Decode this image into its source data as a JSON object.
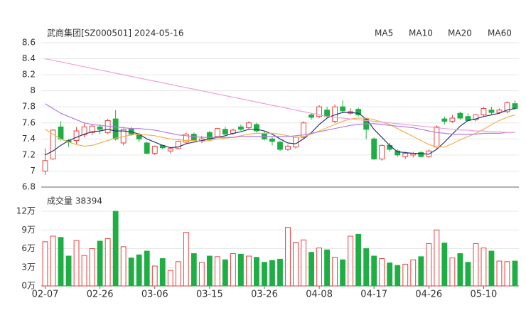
{
  "chart_data": {
    "type": "candlestick",
    "title": "武商集团[SZ000501] 2024-05-16",
    "volume_title": "成交量 38394",
    "categories": [
      "02-07",
      null,
      null,
      null,
      null,
      null,
      null,
      "02-26",
      null,
      null,
      null,
      null,
      null,
      null,
      "03-06",
      null,
      null,
      null,
      null,
      null,
      null,
      "03-15",
      null,
      null,
      null,
      null,
      null,
      null,
      "03-26",
      null,
      null,
      null,
      null,
      null,
      null,
      "04-08",
      null,
      null,
      null,
      null,
      null,
      null,
      "04-17",
      null,
      null,
      null,
      null,
      null,
      null,
      "04-26",
      null,
      null,
      null,
      null,
      null,
      null,
      "05-10",
      null,
      null,
      null,
      null
    ],
    "up_color": "#e8413c",
    "down_color": "#1fae44",
    "ohlc": {
      "open": [
        7.0,
        7.15,
        7.55,
        7.38,
        7.38,
        7.45,
        7.48,
        7.55,
        7.48,
        7.65,
        7.35,
        7.53,
        7.45,
        7.35,
        7.22,
        7.32,
        7.25,
        7.28,
        7.36,
        7.46,
        7.37,
        7.48,
        7.43,
        7.52,
        7.47,
        7.55,
        7.54,
        7.58,
        7.47,
        7.4,
        7.36,
        7.27,
        7.3,
        7.42,
        7.7,
        7.68,
        7.76,
        7.62,
        7.8,
        7.72,
        7.77,
        7.65,
        7.4,
        7.15,
        7.32,
        7.25,
        7.18,
        7.2,
        7.23,
        7.18,
        7.3,
        7.65,
        7.62,
        7.72,
        7.68,
        7.64,
        7.7,
        7.76,
        7.73,
        7.74,
        7.84
      ],
      "high": [
        7.28,
        7.52,
        7.62,
        7.4,
        7.55,
        7.6,
        7.58,
        7.58,
        7.65,
        7.76,
        7.53,
        7.55,
        7.48,
        7.37,
        7.32,
        7.33,
        7.3,
        7.38,
        7.48,
        7.48,
        7.44,
        7.5,
        7.54,
        7.55,
        7.53,
        7.58,
        7.62,
        7.6,
        7.5,
        7.42,
        7.38,
        7.33,
        7.43,
        7.62,
        7.72,
        7.82,
        7.8,
        7.83,
        7.88,
        7.78,
        7.79,
        7.66,
        7.42,
        7.33,
        7.35,
        7.27,
        7.24,
        7.24,
        7.25,
        7.27,
        7.57,
        7.68,
        7.7,
        7.74,
        7.72,
        7.71,
        7.8,
        7.8,
        7.78,
        7.87,
        7.88
      ],
      "low": [
        6.95,
        7.14,
        7.38,
        7.3,
        7.33,
        7.42,
        7.45,
        7.46,
        7.46,
        7.38,
        7.32,
        7.44,
        7.36,
        7.21,
        7.2,
        7.27,
        7.22,
        7.27,
        7.34,
        7.37,
        7.35,
        7.38,
        7.41,
        7.45,
        7.45,
        7.5,
        7.52,
        7.48,
        7.38,
        7.32,
        7.25,
        7.25,
        7.28,
        7.4,
        7.64,
        7.66,
        7.66,
        7.6,
        7.72,
        7.7,
        7.68,
        7.4,
        7.14,
        7.13,
        7.24,
        7.18,
        7.15,
        7.17,
        7.17,
        7.16,
        7.28,
        7.58,
        7.6,
        7.64,
        7.62,
        7.62,
        7.68,
        7.7,
        7.71,
        7.72,
        7.76
      ],
      "close": [
        7.13,
        7.51,
        7.4,
        7.36,
        7.5,
        7.55,
        7.56,
        7.52,
        7.63,
        7.4,
        7.52,
        7.46,
        7.4,
        7.22,
        7.31,
        7.29,
        7.28,
        7.37,
        7.46,
        7.38,
        7.4,
        7.4,
        7.53,
        7.46,
        7.51,
        7.52,
        7.6,
        7.5,
        7.4,
        7.37,
        7.27,
        7.31,
        7.42,
        7.6,
        7.67,
        7.8,
        7.68,
        7.8,
        7.75,
        7.74,
        7.7,
        7.52,
        7.15,
        7.32,
        7.27,
        7.2,
        7.22,
        7.22,
        7.18,
        7.25,
        7.55,
        7.62,
        7.66,
        7.66,
        7.63,
        7.7,
        7.78,
        7.73,
        7.76,
        7.85,
        7.78
      ]
    },
    "series": [
      {
        "name": "MA5",
        "color": "#2b3674",
        "values": [
          7.2,
          7.25,
          7.32,
          7.38,
          7.42,
          7.46,
          7.49,
          7.5,
          7.52,
          7.5,
          7.5,
          7.49,
          7.46,
          7.4,
          7.36,
          7.32,
          7.29,
          7.3,
          7.34,
          7.36,
          7.38,
          7.4,
          7.42,
          7.44,
          7.47,
          7.49,
          7.52,
          7.52,
          7.5,
          7.46,
          7.4,
          7.35,
          7.34,
          7.4,
          7.48,
          7.58,
          7.66,
          7.7,
          7.73,
          7.73,
          7.72,
          7.65,
          7.52,
          7.42,
          7.32,
          7.24,
          7.23,
          7.22,
          7.22,
          7.21,
          7.27,
          7.36,
          7.46,
          7.56,
          7.63,
          7.65,
          7.68,
          7.7,
          7.72,
          7.76,
          7.78
        ]
      },
      {
        "name": "MA10",
        "color": "#f2b04a",
        "values": [
          7.52,
          7.46,
          7.4,
          7.36,
          7.33,
          7.31,
          7.32,
          7.35,
          7.38,
          7.41,
          7.43,
          7.45,
          7.46,
          7.45,
          7.44,
          7.42,
          7.4,
          7.39,
          7.38,
          7.38,
          7.37,
          7.38,
          7.4,
          7.41,
          7.42,
          7.44,
          7.46,
          7.47,
          7.47,
          7.47,
          7.46,
          7.44,
          7.42,
          7.43,
          7.46,
          7.5,
          7.54,
          7.58,
          7.62,
          7.65,
          7.66,
          7.66,
          7.64,
          7.61,
          7.58,
          7.53,
          7.48,
          7.43,
          7.38,
          7.33,
          7.3,
          7.3,
          7.34,
          7.39,
          7.43,
          7.47,
          7.52,
          7.58,
          7.63,
          7.67,
          7.7
        ]
      },
      {
        "name": "MA20",
        "color": "#b47ce0",
        "values": [
          7.84,
          7.78,
          7.72,
          7.68,
          7.64,
          7.6,
          7.58,
          7.57,
          7.56,
          7.55,
          7.54,
          7.53,
          7.53,
          7.52,
          7.51,
          7.49,
          7.47,
          7.45,
          7.44,
          7.43,
          7.42,
          7.42,
          7.42,
          7.42,
          7.42,
          7.43,
          7.43,
          7.43,
          7.43,
          7.43,
          7.43,
          7.43,
          7.44,
          7.45,
          7.47,
          7.49,
          7.51,
          7.53,
          7.55,
          7.57,
          7.58,
          7.59,
          7.59,
          7.58,
          7.57,
          7.56,
          7.55,
          7.54,
          7.52,
          7.5,
          7.48,
          7.47,
          7.46,
          7.46,
          7.46,
          7.46,
          7.47,
          7.47,
          7.47,
          7.48,
          7.48
        ]
      },
      {
        "name": "MA60",
        "color": "#f0a0d4",
        "values": [
          8.4,
          8.38,
          8.36,
          8.34,
          8.32,
          8.3,
          8.28,
          8.26,
          8.24,
          8.22,
          8.2,
          8.18,
          8.16,
          8.14,
          8.12,
          8.1,
          8.08,
          8.06,
          8.04,
          8.02,
          8.0,
          7.98,
          7.96,
          7.94,
          7.92,
          7.9,
          7.88,
          7.86,
          7.84,
          7.82,
          7.8,
          7.78,
          7.76,
          7.74,
          7.72,
          7.7,
          7.68,
          7.67,
          7.66,
          7.65,
          7.64,
          7.63,
          7.62,
          7.61,
          7.6,
          7.59,
          7.58,
          7.57,
          7.56,
          7.55,
          7.54,
          7.53,
          7.52,
          7.51,
          7.51,
          7.5,
          7.5,
          7.49,
          7.49,
          7.48,
          7.48
        ]
      }
    ],
    "volume": [
      7.1,
      8.0,
      7.8,
      4.8,
      7.3,
      4.9,
      6.0,
      7.2,
      7.6,
      12.0,
      6.3,
      4.5,
      5.0,
      5.6,
      3.2,
      4.4,
      2.5,
      3.9,
      8.6,
      5.2,
      3.8,
      4.8,
      4.7,
      4.2,
      5.2,
      5.1,
      4.8,
      4.6,
      3.8,
      4.1,
      4.3,
      9.4,
      7.0,
      7.4,
      5.4,
      6.1,
      5.8,
      4.6,
      4.2,
      8.0,
      8.3,
      6.0,
      4.8,
      4.4,
      3.7,
      3.3,
      3.5,
      4.2,
      4.7,
      6.8,
      9.0,
      6.9,
      4.5,
      5.2,
      3.8,
      6.8,
      6.1,
      5.6,
      4.0,
      3.9,
      4.0
    ],
    "ylim": [
      6.8,
      8.6
    ],
    "yticks": [
      6.8,
      7,
      7.2,
      7.4,
      7.6,
      7.8,
      8,
      8.2,
      8.4,
      8.6
    ],
    "volume_ylim": [
      0,
      12
    ],
    "volume_yticks": [
      {
        "value": 0,
        "label": "0万"
      },
      {
        "value": 3,
        "label": "3万"
      },
      {
        "value": 6,
        "label": "6万"
      },
      {
        "value": 9,
        "label": "9万"
      },
      {
        "value": 12,
        "label": "12万"
      }
    ],
    "grid": true
  }
}
